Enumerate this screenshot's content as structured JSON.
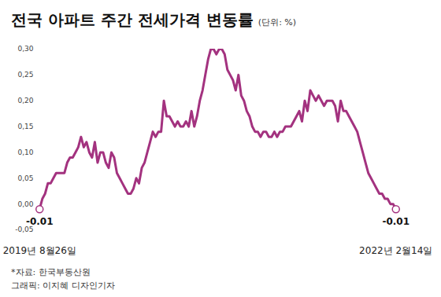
{
  "chart_data": {
    "type": "line",
    "title": "전국 아파트 주간 전세가격 변동률",
    "subtitle": "(단위: %)",
    "notes": [
      "*자료: 한국부동산원",
      "그래픽: 이지혜 디자인기자"
    ],
    "color": "#a3327f",
    "grid": false,
    "categories": [
      "2019년 8월26일",
      null,
      null,
      null,
      null,
      null,
      null,
      null,
      null,
      null,
      null,
      null,
      null,
      null,
      null,
      null,
      null,
      null,
      null,
      null,
      null,
      null,
      null,
      null,
      null,
      null,
      null,
      null,
      null,
      null,
      null,
      null,
      null,
      null,
      null,
      null,
      null,
      null,
      null,
      null,
      null,
      null,
      null,
      null,
      null,
      null,
      null,
      null,
      null,
      null,
      null,
      null,
      null,
      null,
      null,
      null,
      null,
      null,
      null,
      null,
      null,
      null,
      null,
      null,
      null,
      null,
      null,
      null,
      null,
      null,
      null,
      null,
      null,
      null,
      null,
      null,
      null,
      null,
      null,
      null,
      null,
      null,
      null,
      null,
      null,
      null,
      null,
      null,
      null,
      null,
      null,
      null,
      null,
      null,
      null,
      null,
      null,
      null,
      null,
      null,
      null,
      null,
      null,
      null,
      null,
      null,
      null,
      null,
      null,
      null,
      null,
      null,
      null,
      null,
      null,
      null,
      null,
      null,
      null,
      null,
      null,
      null,
      null,
      null,
      null,
      null,
      null,
      null,
      null,
      "2022년 2월14일"
    ],
    "values": [
      -0.01,
      0.01,
      0.02,
      0.04,
      0.04,
      0.05,
      0.06,
      0.06,
      0.06,
      0.06,
      0.08,
      0.09,
      0.09,
      0.1,
      0.11,
      0.13,
      0.11,
      0.12,
      0.1,
      0.09,
      0.12,
      0.08,
      0.1,
      0.1,
      0.08,
      0.07,
      0.1,
      0.09,
      0.06,
      0.05,
      0.04,
      0.03,
      0.02,
      0.02,
      0.03,
      0.05,
      0.04,
      0.07,
      0.08,
      0.1,
      0.12,
      0.14,
      0.13,
      0.14,
      0.14,
      0.2,
      0.17,
      0.17,
      0.16,
      0.15,
      0.16,
      0.15,
      0.15,
      0.16,
      0.15,
      0.18,
      0.15,
      0.17,
      0.2,
      0.22,
      0.25,
      0.28,
      0.3,
      0.3,
      0.29,
      0.3,
      0.3,
      0.29,
      0.26,
      0.25,
      0.24,
      0.22,
      0.25,
      0.21,
      0.2,
      0.18,
      0.17,
      0.15,
      0.14,
      0.14,
      0.13,
      0.14,
      0.14,
      0.13,
      0.13,
      0.14,
      0.13,
      0.14,
      0.14,
      0.15,
      0.15,
      0.15,
      0.16,
      0.17,
      0.18,
      0.16,
      0.2,
      0.18,
      0.22,
      0.21,
      0.2,
      0.21,
      0.2,
      0.19,
      0.2,
      0.2,
      0.2,
      0.19,
      0.16,
      0.2,
      0.18,
      0.18,
      0.17,
      0.16,
      0.15,
      0.14,
      0.12,
      0.1,
      0.08,
      0.06,
      0.05,
      0.04,
      0.03,
      0.02,
      0.02,
      0.01,
      0.01,
      0.0,
      0.0,
      -0.01
    ],
    "ylim": [
      -0.05,
      0.3
    ],
    "yticks": [
      {
        "value": -0.05,
        "label": "-0,05"
      },
      {
        "value": 0,
        "label": "0,00"
      },
      {
        "value": 0.05,
        "label": "0,05"
      },
      {
        "value": 0.1,
        "label": "0,10"
      },
      {
        "value": 0.15,
        "label": "0,15"
      },
      {
        "value": 0.2,
        "label": "0,20"
      },
      {
        "value": 0.25,
        "label": "0,25"
      },
      {
        "value": 0.3,
        "label": "0,30"
      }
    ],
    "annotations": [
      {
        "category": "2019년 8월26일",
        "text": "-0.01"
      },
      {
        "category": "2022년 2월14일",
        "text": "-0.01"
      }
    ]
  }
}
